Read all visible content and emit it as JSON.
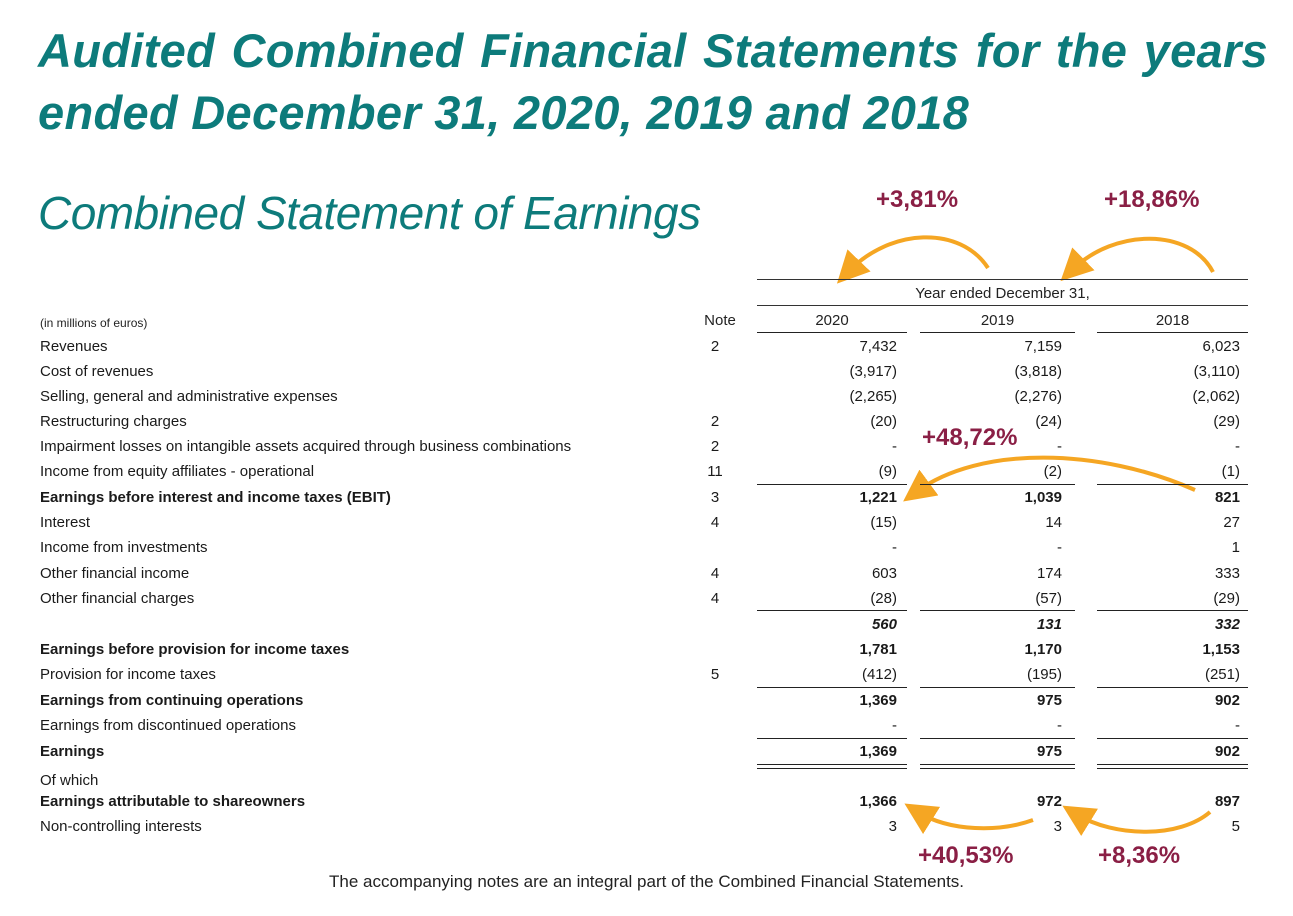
{
  "title": "Audited Combined Financial Statements for the years ended December 31, 2020, 2019 and 2018",
  "subtitle": "Combined Statement of Earnings",
  "header": {
    "year_ended": "Year ended December 31,",
    "units": "(in millions of euros)",
    "note": "Note",
    "years": [
      "2020",
      "2019",
      "2018"
    ]
  },
  "annotations": {
    "top_left": "+3,81%",
    "top_right": "+18,86%",
    "middle": "+48,72%",
    "bottom_left": "+40,53%",
    "bottom_right": "+8,36%",
    "color": "#8a1f45",
    "arrow_color": "#f5a623"
  },
  "rows": [
    {
      "label": "Revenues",
      "note": "2",
      "v2020": "7,432",
      "v2019": "7,159",
      "v2018": "6,023",
      "style": "bold"
    },
    {
      "label": "Cost of revenues",
      "note": "",
      "v2020": "(3,917)",
      "v2019": "(3,818)",
      "v2018": "(3,110)",
      "style": ""
    },
    {
      "label": "Selling, general and administrative expenses",
      "note": "",
      "v2020": "(2,265)",
      "v2019": "(2,276)",
      "v2018": "(2,062)",
      "style": ""
    },
    {
      "label": "Restructuring charges",
      "note": "2",
      "v2020": "(20)",
      "v2019": "(24)",
      "v2018": "(29)",
      "style": ""
    },
    {
      "label": "Impairment losses on intangible assets acquired through business combinations",
      "note": "2",
      "v2020": "-",
      "v2019": "-",
      "v2018": "-",
      "style": ""
    },
    {
      "label": "Income from equity affiliates - operational",
      "note": "11",
      "v2020": "(9)",
      "v2019": "(2)",
      "v2018": "(1)",
      "style": ""
    },
    {
      "label": "Earnings before interest and income taxes (EBIT)",
      "note": "3",
      "v2020": "1,221",
      "v2019": "1,039",
      "v2018": "821",
      "style": "bold"
    },
    {
      "label": "Interest",
      "note": "4",
      "v2020": "(15)",
      "v2019": "14",
      "v2018": "27",
      "style": ""
    },
    {
      "label": "Income from investments",
      "note": "",
      "v2020": "-",
      "v2019": "-",
      "v2018": "1",
      "style": ""
    },
    {
      "label": "Other financial income",
      "note": "4",
      "v2020": "603",
      "v2019": "174",
      "v2018": "333",
      "style": ""
    },
    {
      "label": "Other financial charges",
      "note": "4",
      "v2020": "(28)",
      "v2019": "(57)",
      "v2018": "(29)",
      "style": ""
    },
    {
      "label": "",
      "note": "",
      "v2020": "560",
      "v2019": "131",
      "v2018": "332",
      "style": "bi"
    },
    {
      "label": "Earnings before provision for income taxes",
      "note": "",
      "v2020": "1,781",
      "v2019": "1,170",
      "v2018": "1,153",
      "style": "bold"
    },
    {
      "label": "Provision for income taxes",
      "note": "5",
      "v2020": "(412)",
      "v2019": "(195)",
      "v2018": "(251)",
      "style": ""
    },
    {
      "label": "Earnings from continuing operations",
      "note": "",
      "v2020": "1,369",
      "v2019": "975",
      "v2018": "902",
      "style": "bold"
    },
    {
      "label": "Earnings from discontinued operations",
      "note": "",
      "v2020": "-",
      "v2019": "-",
      "v2018": "-",
      "style": ""
    },
    {
      "label": "Earnings",
      "note": "",
      "v2020": "1,369",
      "v2019": "975",
      "v2018": "902",
      "style": "bold"
    },
    {
      "label": "Of which",
      "note": "",
      "v2020": "",
      "v2019": "",
      "v2018": "",
      "style": ""
    },
    {
      "label": "Earnings attributable to shareowners",
      "note": "",
      "v2020": "1,366",
      "v2019": "972",
      "v2018": "897",
      "style": "bold"
    },
    {
      "label": "Non-controlling interests",
      "note": "",
      "v2020": "3",
      "v2019": "3",
      "v2018": "5",
      "style": ""
    }
  ],
  "footer": "The accompanying notes are an integral part of the Combined Financial Statements."
}
